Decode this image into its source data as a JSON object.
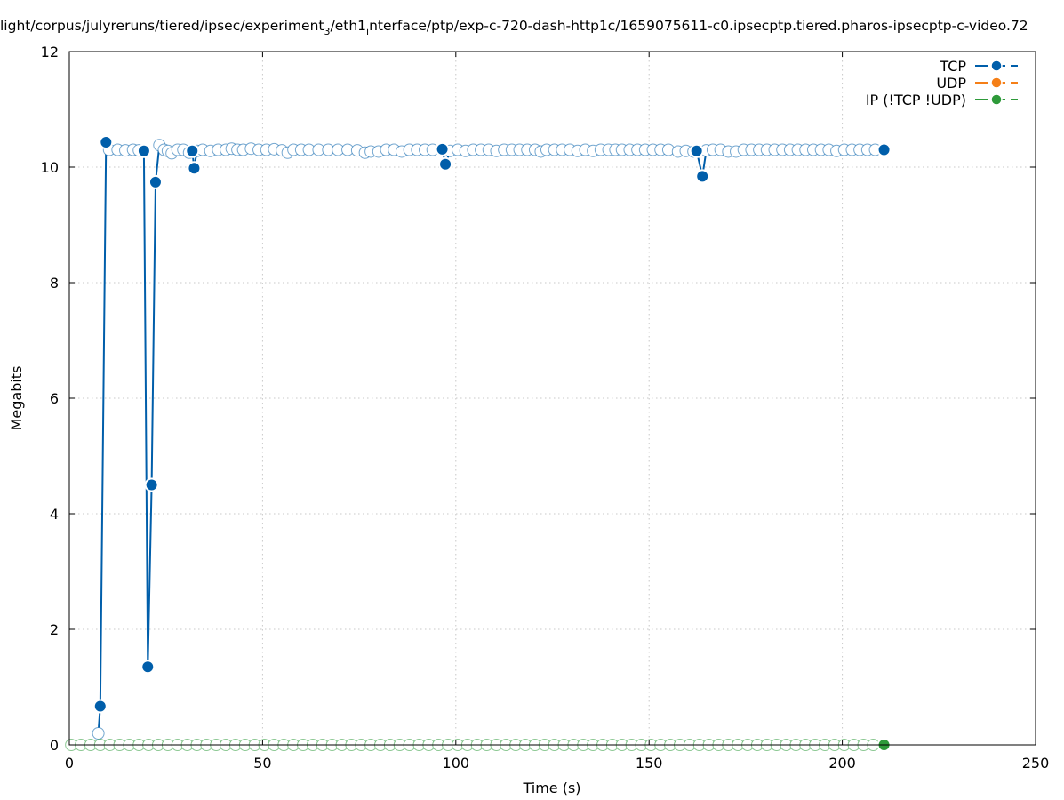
{
  "chart_data": {
    "type": "line",
    "title": "light/corpus/julyreruns/tiered/ipsec/experiment_3/eth1_interface/ptp/exp-c-720-dash-http1c/1659075611-c0.ipsecptp.tiered.pharos-ipsecptp-c-video.72",
    "title_parts": {
      "a": "light/corpus/julyreruns/tiered/ipsec/experiment",
      "sub1": "3",
      "b": "/eth1",
      "sub2": "i",
      "c": "nterface/ptp/exp-c-720-dash-http1c/1659075611-c0.ipsecptp.tiered.pharos-ipsecptp-c-video.72"
    },
    "xlabel": "Time (s)",
    "ylabel": "Megabits",
    "xlim": [
      0,
      250
    ],
    "ylim": [
      0,
      12
    ],
    "xticks": [
      0,
      50,
      100,
      150,
      200,
      250
    ],
    "yticks": [
      0,
      2,
      4,
      6,
      8,
      10,
      12
    ],
    "grid": true,
    "legend_position": "top-right",
    "series": [
      {
        "name": "TCP",
        "color": "#005eaa",
        "points": [
          [
            7.5,
            0.2
          ],
          [
            8.0,
            0.67
          ],
          [
            9.5,
            10.43
          ],
          [
            10.3,
            10.3
          ],
          [
            12.5,
            10.3
          ],
          [
            14.5,
            10.29
          ],
          [
            16.5,
            10.3
          ],
          [
            18.0,
            10.29
          ],
          [
            19.3,
            10.28
          ],
          [
            20.3,
            1.35
          ],
          [
            21.3,
            4.5
          ],
          [
            22.3,
            9.74
          ],
          [
            23.3,
            10.38
          ],
          [
            24.5,
            10.3
          ],
          [
            25.5,
            10.28
          ],
          [
            26.5,
            10.24
          ],
          [
            28.0,
            10.3
          ],
          [
            29.5,
            10.3
          ],
          [
            31.0,
            10.25
          ],
          [
            31.8,
            10.28
          ],
          [
            32.3,
            9.98
          ],
          [
            33.0,
            10.28
          ],
          [
            34.5,
            10.3
          ],
          [
            36.5,
            10.28
          ],
          [
            38.5,
            10.3
          ],
          [
            40.5,
            10.3
          ],
          [
            42.0,
            10.32
          ],
          [
            43.5,
            10.3
          ],
          [
            45.0,
            10.3
          ],
          [
            47.0,
            10.32
          ],
          [
            49.0,
            10.3
          ],
          [
            51.0,
            10.3
          ],
          [
            53.0,
            10.31
          ],
          [
            55.0,
            10.29
          ],
          [
            56.5,
            10.25
          ],
          [
            58.0,
            10.3
          ],
          [
            60.0,
            10.3
          ],
          [
            62.0,
            10.3
          ],
          [
            64.5,
            10.3
          ],
          [
            67.0,
            10.3
          ],
          [
            69.5,
            10.3
          ],
          [
            72.0,
            10.3
          ],
          [
            74.5,
            10.29
          ],
          [
            76.5,
            10.25
          ],
          [
            78.0,
            10.27
          ],
          [
            80.0,
            10.27
          ],
          [
            82.0,
            10.3
          ],
          [
            84.0,
            10.3
          ],
          [
            86.0,
            10.27
          ],
          [
            88.0,
            10.3
          ],
          [
            90.0,
            10.3
          ],
          [
            92.0,
            10.3
          ],
          [
            94.0,
            10.3
          ],
          [
            96.5,
            10.31
          ],
          [
            97.3,
            10.05
          ],
          [
            98.5,
            10.28
          ],
          [
            100.5,
            10.3
          ],
          [
            102.5,
            10.28
          ],
          [
            104.5,
            10.3
          ],
          [
            106.5,
            10.3
          ],
          [
            108.5,
            10.3
          ],
          [
            110.5,
            10.28
          ],
          [
            112.5,
            10.3
          ],
          [
            114.5,
            10.3
          ],
          [
            116.5,
            10.3
          ],
          [
            118.5,
            10.3
          ],
          [
            120.5,
            10.3
          ],
          [
            122.0,
            10.27
          ],
          [
            123.5,
            10.3
          ],
          [
            125.5,
            10.3
          ],
          [
            127.5,
            10.3
          ],
          [
            129.5,
            10.3
          ],
          [
            131.5,
            10.28
          ],
          [
            133.5,
            10.3
          ],
          [
            135.5,
            10.28
          ],
          [
            137.5,
            10.3
          ],
          [
            139.5,
            10.3
          ],
          [
            141.3,
            10.3
          ],
          [
            143.0,
            10.3
          ],
          [
            145.0,
            10.3
          ],
          [
            147.0,
            10.3
          ],
          [
            149.0,
            10.3
          ],
          [
            151.0,
            10.3
          ],
          [
            153.0,
            10.3
          ],
          [
            155.0,
            10.3
          ],
          [
            157.5,
            10.27
          ],
          [
            159.5,
            10.28
          ],
          [
            161.5,
            10.27
          ],
          [
            162.3,
            10.28
          ],
          [
            163.8,
            9.84
          ],
          [
            164.8,
            10.29
          ],
          [
            166.5,
            10.3
          ],
          [
            168.5,
            10.3
          ],
          [
            170.5,
            10.27
          ],
          [
            172.5,
            10.27
          ],
          [
            174.5,
            10.3
          ],
          [
            176.5,
            10.3
          ],
          [
            178.5,
            10.3
          ],
          [
            180.5,
            10.3
          ],
          [
            182.5,
            10.3
          ],
          [
            184.5,
            10.3
          ],
          [
            186.5,
            10.3
          ],
          [
            188.5,
            10.3
          ],
          [
            190.5,
            10.3
          ],
          [
            192.5,
            10.3
          ],
          [
            194.5,
            10.3
          ],
          [
            196.5,
            10.3
          ],
          [
            198.5,
            10.28
          ],
          [
            200.5,
            10.3
          ],
          [
            202.5,
            10.3
          ],
          [
            204.5,
            10.3
          ],
          [
            206.5,
            10.3
          ],
          [
            208.5,
            10.3
          ],
          [
            210.8,
            10.3
          ]
        ],
        "emphasized_points": [
          [
            8.0,
            0.67
          ],
          [
            9.5,
            10.43
          ],
          [
            19.3,
            10.28
          ],
          [
            20.3,
            1.35
          ],
          [
            21.3,
            4.5
          ],
          [
            22.3,
            9.74
          ],
          [
            31.8,
            10.28
          ],
          [
            32.3,
            9.98
          ],
          [
            96.5,
            10.31
          ],
          [
            97.3,
            10.05
          ],
          [
            162.3,
            10.28
          ],
          [
            163.8,
            9.84
          ],
          [
            210.8,
            10.3
          ]
        ]
      },
      {
        "name": "UDP",
        "color": "#f57f17",
        "points": []
      },
      {
        "name": "IP (!TCP  !UDP)",
        "color": "#2e9a3a",
        "points": [
          [
            0.5,
            0
          ],
          [
            3.0,
            0
          ],
          [
            5.5,
            0
          ],
          [
            8.0,
            0
          ],
          [
            10.5,
            0
          ],
          [
            13.0,
            0
          ],
          [
            15.5,
            0
          ],
          [
            18.0,
            0
          ],
          [
            20.5,
            0
          ],
          [
            23.0,
            0
          ],
          [
            25.5,
            0
          ],
          [
            28.0,
            0
          ],
          [
            30.5,
            0
          ],
          [
            33.0,
            0
          ],
          [
            35.5,
            0
          ],
          [
            38.0,
            0
          ],
          [
            40.5,
            0
          ],
          [
            43.0,
            0
          ],
          [
            45.5,
            0
          ],
          [
            48.0,
            0
          ],
          [
            50.5,
            0
          ],
          [
            53.0,
            0
          ],
          [
            55.5,
            0
          ],
          [
            58.0,
            0
          ],
          [
            60.5,
            0
          ],
          [
            63.0,
            0
          ],
          [
            65.5,
            0
          ],
          [
            68.0,
            0
          ],
          [
            70.5,
            0
          ],
          [
            73.0,
            0
          ],
          [
            75.5,
            0
          ],
          [
            78.0,
            0
          ],
          [
            80.5,
            0
          ],
          [
            83.0,
            0
          ],
          [
            85.5,
            0
          ],
          [
            88.0,
            0
          ],
          [
            90.5,
            0
          ],
          [
            93.0,
            0
          ],
          [
            95.5,
            0
          ],
          [
            98.0,
            0
          ],
          [
            100.5,
            0
          ],
          [
            103.0,
            0
          ],
          [
            105.5,
            0
          ],
          [
            108.0,
            0
          ],
          [
            110.5,
            0
          ],
          [
            113.0,
            0
          ],
          [
            115.5,
            0
          ],
          [
            118.0,
            0
          ],
          [
            120.5,
            0
          ],
          [
            123.0,
            0
          ],
          [
            125.5,
            0
          ],
          [
            128.0,
            0
          ],
          [
            130.5,
            0
          ],
          [
            133.0,
            0
          ],
          [
            135.5,
            0
          ],
          [
            138.0,
            0
          ],
          [
            140.5,
            0
          ],
          [
            143.0,
            0
          ],
          [
            145.5,
            0
          ],
          [
            148.0,
            0
          ],
          [
            150.5,
            0
          ],
          [
            153.0,
            0
          ],
          [
            155.5,
            0
          ],
          [
            158.0,
            0
          ],
          [
            160.5,
            0
          ],
          [
            163.0,
            0
          ],
          [
            165.5,
            0
          ],
          [
            168.0,
            0
          ],
          [
            170.5,
            0
          ],
          [
            173.0,
            0
          ],
          [
            175.5,
            0
          ],
          [
            178.0,
            0
          ],
          [
            180.5,
            0
          ],
          [
            183.0,
            0
          ],
          [
            185.5,
            0
          ],
          [
            188.0,
            0
          ],
          [
            190.5,
            0
          ],
          [
            193.0,
            0
          ],
          [
            195.5,
            0
          ],
          [
            198.0,
            0
          ],
          [
            200.5,
            0
          ],
          [
            203.0,
            0
          ],
          [
            205.5,
            0
          ],
          [
            208.0,
            0
          ],
          [
            210.8,
            0
          ]
        ],
        "emphasized_points": [
          [
            210.8,
            0
          ]
        ]
      }
    ]
  }
}
